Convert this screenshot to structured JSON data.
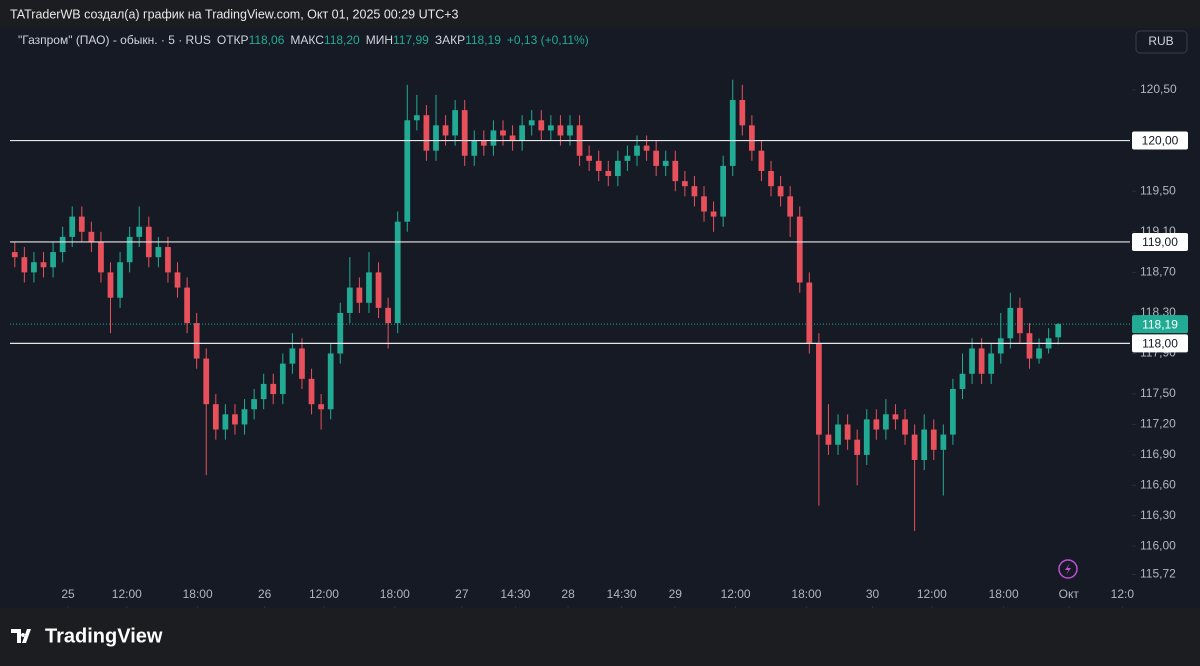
{
  "header": {
    "credit": "TATraderWB создал(а) график на TradingView.com, Окт 01, 2025 00:29 UTC+3",
    "brand": "TradingView"
  },
  "chart_data": {
    "type": "candlestick",
    "symbol": "\"Газпром\" (ПАО) - обыкн. · 5 · RUS",
    "legend": [
      {
        "label": "ОТКР",
        "value": "118,06"
      },
      {
        "label": "МАКС",
        "value": "118,20"
      },
      {
        "label": "МИН",
        "value": "117,99"
      },
      {
        "label": "ЗАКР",
        "value": "118,19"
      }
    ],
    "change": "+0,13 (+0,11%)",
    "currency": "RUB",
    "up_color": "#22ab94",
    "down_color": "#e8505b",
    "open": [
      118.9,
      118.85,
      118.7,
      118.8,
      118.75,
      118.9,
      119.05,
      119.25,
      119.1,
      119.0,
      118.7,
      118.45,
      118.8,
      119.05,
      119.15,
      118.85,
      118.95,
      118.7,
      118.55,
      118.2,
      117.85,
      117.4,
      117.15,
      117.3,
      117.2,
      117.35,
      117.45,
      117.6,
      117.5,
      117.8,
      117.95,
      117.65,
      117.4,
      117.35,
      117.9,
      118.3,
      118.55,
      118.4,
      118.7,
      118.35,
      118.2,
      119.2,
      120.2,
      120.25,
      119.9,
      120.15,
      120.05,
      120.3,
      119.85,
      120.0,
      119.95,
      120.1,
      120.05,
      120.0,
      120.15,
      120.2,
      120.1,
      120.15,
      120.05,
      120.15,
      119.85,
      119.8,
      119.7,
      119.65,
      119.8,
      119.85,
      119.95,
      119.9,
      119.75,
      119.8,
      119.6,
      119.55,
      119.45,
      119.3,
      119.25,
      119.75,
      120.4,
      120.15,
      119.9,
      119.7,
      119.55,
      119.45,
      119.25,
      118.6,
      118.0,
      117.1,
      117.0,
      117.2,
      117.05,
      116.9,
      117.25,
      117.15,
      117.3,
      117.25,
      117.1,
      116.85,
      117.15,
      116.95,
      117.1,
      117.55,
      117.7,
      117.95,
      117.7,
      117.9,
      118.05,
      118.35,
      118.1,
      117.85,
      117.95,
      118.06
    ],
    "high": [
      119.0,
      118.95,
      118.9,
      118.9,
      119.0,
      119.15,
      119.35,
      119.35,
      119.2,
      119.1,
      118.8,
      118.9,
      119.15,
      119.35,
      119.25,
      119.05,
      119.05,
      118.8,
      118.65,
      118.3,
      117.95,
      117.5,
      117.4,
      117.4,
      117.45,
      117.55,
      117.7,
      117.7,
      117.9,
      118.1,
      118.05,
      117.75,
      117.5,
      118.0,
      118.4,
      118.85,
      118.65,
      118.9,
      118.8,
      118.45,
      119.3,
      120.55,
      120.45,
      120.35,
      120.45,
      120.25,
      120.4,
      120.4,
      120.1,
      120.1,
      120.2,
      120.2,
      120.15,
      120.25,
      120.3,
      120.3,
      120.25,
      120.25,
      120.25,
      120.25,
      119.95,
      119.9,
      119.8,
      119.9,
      119.95,
      120.05,
      120.05,
      120.0,
      119.9,
      119.9,
      119.7,
      119.65,
      119.55,
      119.4,
      119.85,
      120.6,
      120.55,
      120.25,
      120.0,
      119.8,
      119.65,
      119.55,
      119.35,
      118.7,
      118.1,
      117.4,
      117.3,
      117.3,
      117.15,
      117.35,
      117.35,
      117.45,
      117.4,
      117.35,
      117.2,
      117.3,
      117.25,
      117.2,
      117.65,
      117.9,
      118.05,
      118.05,
      118.0,
      118.3,
      118.5,
      118.45,
      118.2,
      118.05,
      118.15,
      118.2
    ],
    "low": [
      118.75,
      118.6,
      118.6,
      118.65,
      118.65,
      118.8,
      118.95,
      119.0,
      118.9,
      118.6,
      118.1,
      118.35,
      118.7,
      118.95,
      118.75,
      118.75,
      118.6,
      118.45,
      118.1,
      117.75,
      116.7,
      117.05,
      117.05,
      117.1,
      117.1,
      117.25,
      117.35,
      117.4,
      117.4,
      117.7,
      117.55,
      117.3,
      117.15,
      117.25,
      117.8,
      118.2,
      118.3,
      118.3,
      118.25,
      117.95,
      118.1,
      119.1,
      120.1,
      119.8,
      119.8,
      119.95,
      119.95,
      119.75,
      119.75,
      119.85,
      119.85,
      119.95,
      119.9,
      119.9,
      120.05,
      120.0,
      120.0,
      119.95,
      119.95,
      119.75,
      119.7,
      119.6,
      119.55,
      119.55,
      119.7,
      119.75,
      119.8,
      119.65,
      119.65,
      119.5,
      119.45,
      119.35,
      119.2,
      119.1,
      119.15,
      119.65,
      120.05,
      119.8,
      119.6,
      119.45,
      119.35,
      119.05,
      118.5,
      117.9,
      116.4,
      116.9,
      116.9,
      116.95,
      116.6,
      116.8,
      117.05,
      117.05,
      117.15,
      117.0,
      116.15,
      116.75,
      116.85,
      116.5,
      117.0,
      117.45,
      117.6,
      117.6,
      117.6,
      117.8,
      117.95,
      118.0,
      117.75,
      117.8,
      117.9,
      117.99
    ],
    "close": [
      118.85,
      118.7,
      118.8,
      118.75,
      118.9,
      119.05,
      119.25,
      119.1,
      119.0,
      118.7,
      118.45,
      118.8,
      119.05,
      119.15,
      118.85,
      118.95,
      118.7,
      118.55,
      118.2,
      117.85,
      117.4,
      117.15,
      117.3,
      117.2,
      117.35,
      117.45,
      117.6,
      117.5,
      117.8,
      117.95,
      117.65,
      117.4,
      117.35,
      117.9,
      118.3,
      118.55,
      118.4,
      118.7,
      118.35,
      118.2,
      119.2,
      120.2,
      120.25,
      119.9,
      120.15,
      120.05,
      120.3,
      119.85,
      120.0,
      119.95,
      120.1,
      120.05,
      120.0,
      120.15,
      120.2,
      120.1,
      120.15,
      120.05,
      120.15,
      119.85,
      119.8,
      119.7,
      119.65,
      119.8,
      119.85,
      119.95,
      119.9,
      119.75,
      119.8,
      119.6,
      119.55,
      119.45,
      119.3,
      119.25,
      119.75,
      120.4,
      120.15,
      119.9,
      119.7,
      119.55,
      119.45,
      119.25,
      118.6,
      118.0,
      117.1,
      117.0,
      117.2,
      117.05,
      116.9,
      117.25,
      117.15,
      117.3,
      117.25,
      117.1,
      116.85,
      117.15,
      116.95,
      117.1,
      117.55,
      117.7,
      117.95,
      117.7,
      117.9,
      118.05,
      118.35,
      118.1,
      117.85,
      117.95,
      118.05,
      118.19
    ],
    "xlim": [
      0,
      117
    ],
    "xticks": [
      {
        "value": 6.06,
        "label": "25"
      },
      {
        "value": 12.2,
        "label": "12:00"
      },
      {
        "value": 19.6,
        "label": "18:00"
      },
      {
        "value": 26.6,
        "label": "26"
      },
      {
        "value": 32.8,
        "label": "12:00"
      },
      {
        "value": 40.2,
        "label": "18:00"
      },
      {
        "value": 47.2,
        "label": "27"
      },
      {
        "value": 52.8,
        "label": "14:30"
      },
      {
        "value": 58.3,
        "label": "28"
      },
      {
        "value": 63.9,
        "label": "14:30"
      },
      {
        "value": 69.5,
        "label": "29"
      },
      {
        "value": 75.8,
        "label": "12:00"
      },
      {
        "value": 83.2,
        "label": "18:00"
      },
      {
        "value": 90.1,
        "label": "30"
      },
      {
        "value": 96.3,
        "label": "12:00"
      },
      {
        "value": 103.8,
        "label": "18:00"
      },
      {
        "value": 110.6,
        "label": "Окт"
      },
      {
        "value": 116.2,
        "label": "12:0"
      }
    ],
    "ylim": [
      115.39,
      121.11
    ],
    "yticks": [
      {
        "value": 120.5,
        "label": "120,50"
      },
      {
        "value": 119.5,
        "label": "119,50"
      },
      {
        "value": 119.1,
        "label": "119,10"
      },
      {
        "value": 118.7,
        "label": "118,70"
      },
      {
        "value": 118.3,
        "label": "118,30"
      },
      {
        "value": 117.9,
        "label": "117,90"
      },
      {
        "value": 117.5,
        "label": "117,50"
      },
      {
        "value": 117.2,
        "label": "117,20"
      },
      {
        "value": 116.9,
        "label": "116,90"
      },
      {
        "value": 116.6,
        "label": "116,60"
      },
      {
        "value": 116.3,
        "label": "116,30"
      },
      {
        "value": 116.0,
        "label": "116,00"
      },
      {
        "value": 115.72,
        "label": "115,72"
      }
    ],
    "hlines": [
      {
        "value": 120,
        "label": "120,00"
      },
      {
        "value": 119,
        "label": "119,00"
      },
      {
        "value": 118,
        "label": "118,00"
      }
    ],
    "last_price": {
      "value": 118.19,
      "label": "118,19"
    }
  }
}
